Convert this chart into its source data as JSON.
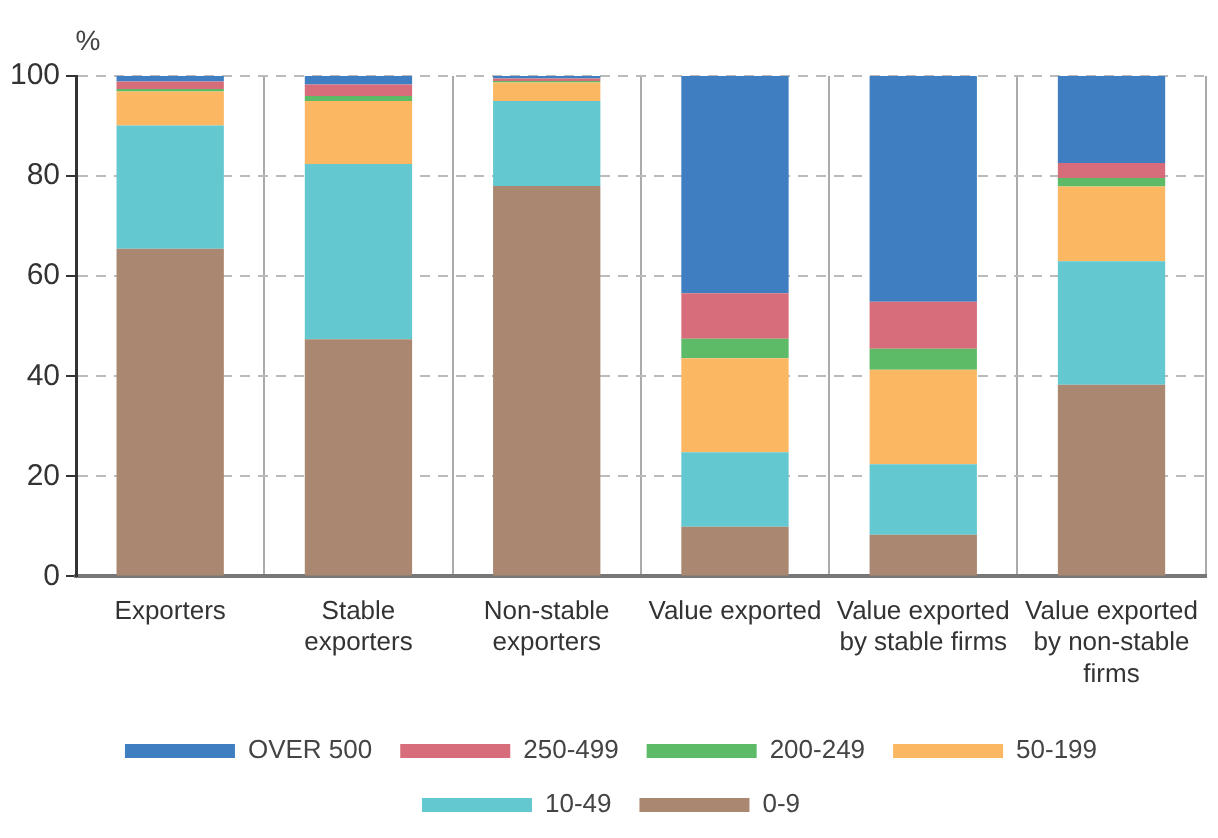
{
  "chart_data": {
    "type": "bar",
    "stacked": true,
    "ylabel": "%",
    "categories": [
      "Exporters",
      "Stable exporters",
      "Non-stable exporters",
      "Value exported",
      "Value exported by stable firms",
      "Value exported by non-stable firms"
    ],
    "series": [
      {
        "name": "0-9",
        "color": "#aa8770",
        "values": [
          65.5,
          47.4,
          78.0,
          9.9,
          8.3,
          38.3
        ]
      },
      {
        "name": "10-49",
        "color": "#63c8d0",
        "values": [
          24.6,
          35.0,
          17.0,
          14.9,
          14.1,
          24.7
        ]
      },
      {
        "name": "50-199",
        "color": "#fbb762",
        "values": [
          6.8,
          12.6,
          3.7,
          18.8,
          18.9,
          14.9
        ]
      },
      {
        "name": "200-249",
        "color": "#5dbb67",
        "values": [
          0.5,
          1.0,
          0.3,
          3.9,
          4.2,
          1.7
        ]
      },
      {
        "name": "250-499",
        "color": "#d76d7a",
        "values": [
          1.5,
          2.3,
          0.5,
          9.1,
          9.4,
          3.0
        ]
      },
      {
        "name": "OVER 500",
        "color": "#3f7fc1",
        "values": [
          1.1,
          1.7,
          0.5,
          43.4,
          45.1,
          17.4
        ]
      }
    ],
    "ylim": [
      0,
      100
    ],
    "yticks": [
      0,
      20,
      40,
      60,
      80,
      100
    ],
    "grid": true,
    "legend": "bottom"
  }
}
